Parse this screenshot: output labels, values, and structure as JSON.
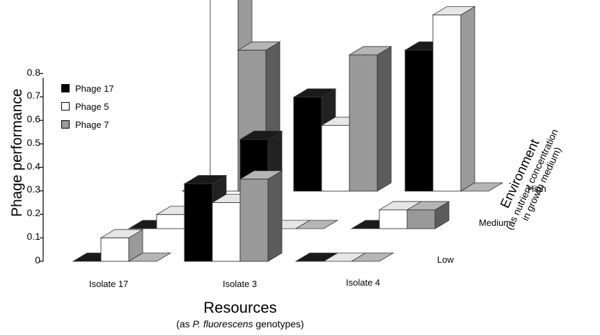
{
  "chart_data": {
    "type": "bar",
    "ylabel": "Phage performance",
    "ylim": [
      0,
      0.8
    ],
    "yticks": [
      "0",
      "0.1",
      "0.2",
      "0.3",
      "0.4",
      "0.5",
      "0.6",
      "0.7",
      "0.8"
    ],
    "categories": [
      "Isolate  17",
      "Isolate 3",
      "Isolate 4"
    ],
    "environments": [
      "Low",
      "Medium",
      "High"
    ],
    "series": [
      {
        "name": "Phage 17",
        "color": "#000000",
        "values": {
          "Low": [
            0,
            0.33,
            0
          ],
          "Medium": [
            0,
            0.38,
            0
          ],
          "High": [
            0,
            0.4,
            0.6
          ]
        }
      },
      {
        "name": "Phage 5",
        "color": "#ffffff",
        "values": {
          "Low": [
            0.1,
            0.25,
            0
          ],
          "Medium": [
            0.06,
            0,
            0.08
          ],
          "High": [
            0.95,
            0.28,
            0.75
          ]
        }
      },
      {
        "name": "Phage 7",
        "color": "#999999",
        "values": {
          "Low": [
            0,
            0.35,
            0
          ],
          "Medium": [
            0,
            0,
            0.08
          ],
          "High": [
            0.6,
            0.58,
            0
          ]
        }
      }
    ],
    "xlabel": "Resources",
    "xlabel_sub_prefix": "(as ",
    "xlabel_sub_italic": "P. fluorescens",
    "xlabel_sub_suffix": " genotypes)",
    "zlabel": "Environment",
    "zlabel_sub_1": "(as nutrient concentration",
    "zlabel_sub_2": "in growth medium)",
    "legend_position": "top-left",
    "grid": false
  }
}
